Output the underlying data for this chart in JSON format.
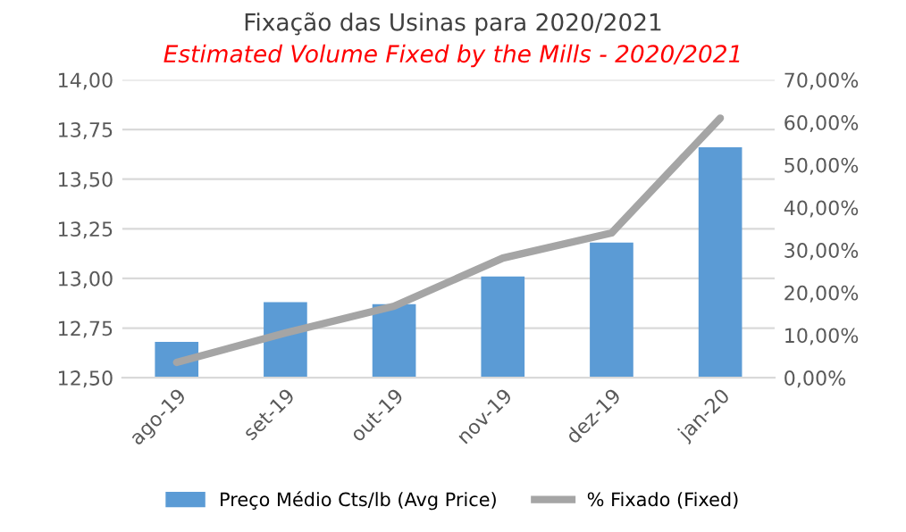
{
  "chart_data": {
    "type": "bar",
    "title": "Fixação das Usinas para 2020/2021",
    "subtitle": "Estimated Volume Fixed by the Mills - 2020/2021",
    "categories": [
      "ago-19",
      "set-19",
      "out-19",
      "nov-19",
      "dez-19",
      "jan-20"
    ],
    "series": [
      {
        "name": "Preço Médio Cts/lb (Avg Price)",
        "color": "#5b9bd5",
        "values": [
          12.68,
          12.88,
          12.87,
          13.01,
          13.18,
          13.66
        ]
      },
      {
        "name": "% Fixado (Fixed)",
        "type": "line",
        "axis": "y2",
        "color": "#a5a5a5",
        "values": [
          3.6,
          10.5,
          16.8,
          28.1,
          34.0,
          61.0
        ]
      }
    ],
    "ylim": [
      12.5,
      14.0
    ],
    "yticks": [
      {
        "value": 12.5,
        "label": "12,50"
      },
      {
        "value": 12.75,
        "label": "12,75"
      },
      {
        "value": 13.0,
        "label": "13,00"
      },
      {
        "value": 13.25,
        "label": "13,25"
      },
      {
        "value": 13.5,
        "label": "13,50"
      },
      {
        "value": 13.75,
        "label": "13,75"
      },
      {
        "value": 14.0,
        "label": "14,00"
      }
    ],
    "y2lim": [
      0,
      70
    ],
    "y2ticks": [
      {
        "value": 0,
        "label": "0,00%"
      },
      {
        "value": 10,
        "label": "10,00%"
      },
      {
        "value": 20,
        "label": "20,00%"
      },
      {
        "value": 30,
        "label": "30,00%"
      },
      {
        "value": 40,
        "label": "40,00%"
      },
      {
        "value": 50,
        "label": "50,00%"
      },
      {
        "value": 60,
        "label": "60,00%"
      },
      {
        "value": 70,
        "label": "70,00%"
      }
    ],
    "grid": "y",
    "legend": "bottom"
  }
}
